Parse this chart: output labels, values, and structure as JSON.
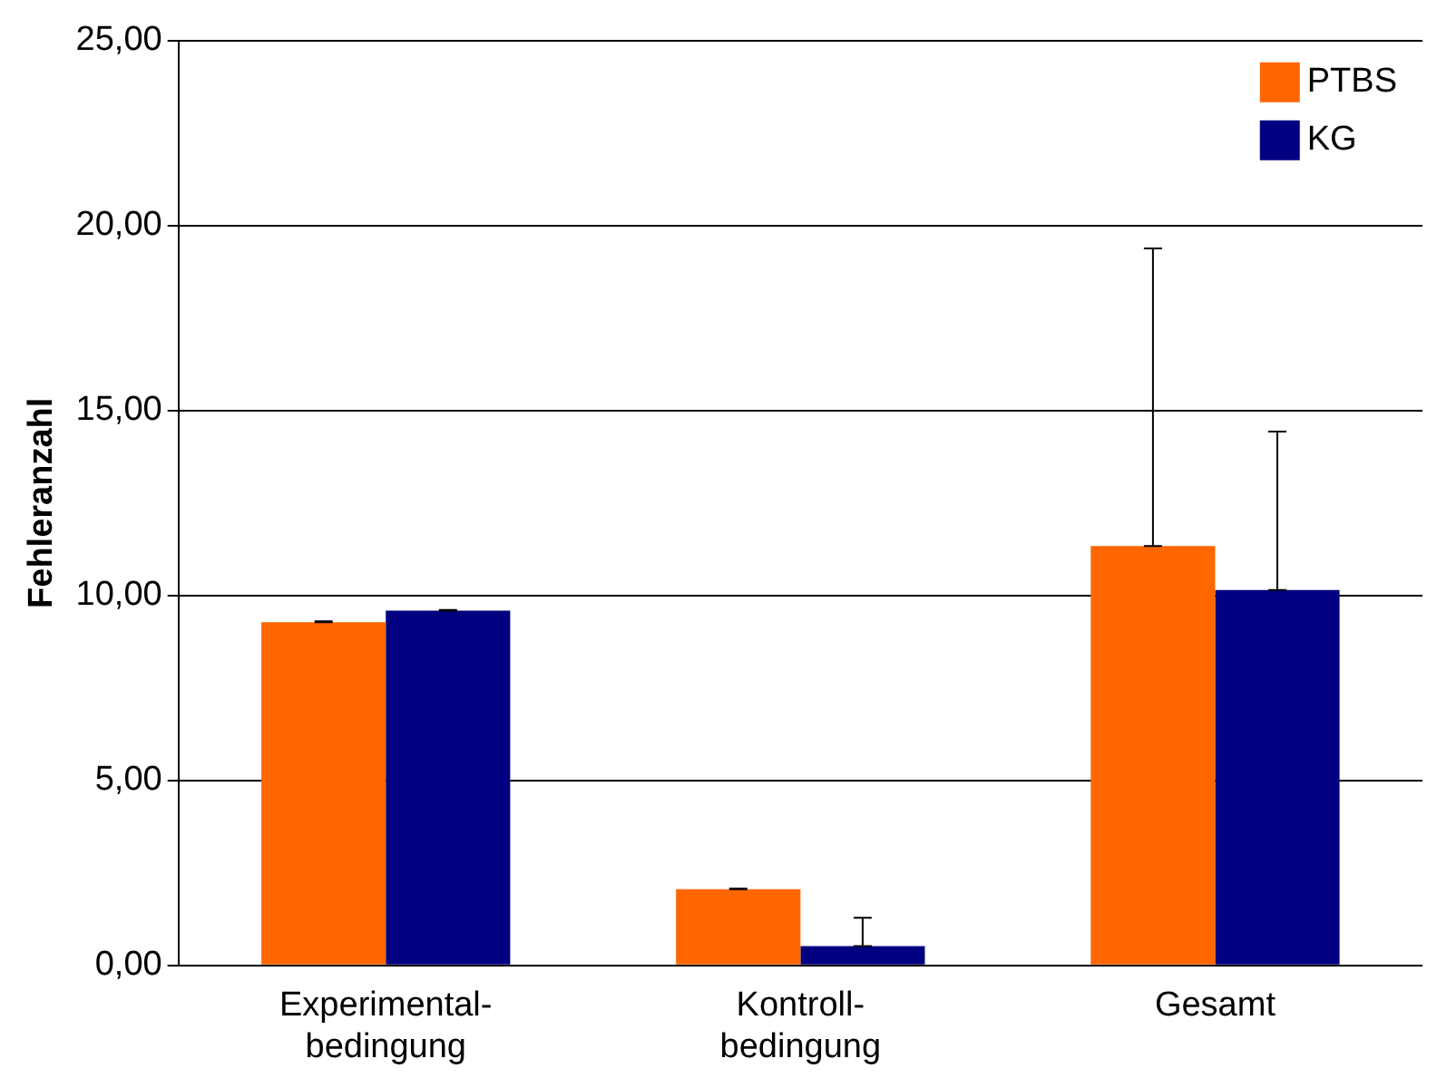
{
  "chart_data": {
    "type": "bar",
    "ylabel": "Fehleranzahl",
    "categories": [
      "Experimental-bedingung",
      "Kontroll-bedingung",
      "Gesamt"
    ],
    "series": [
      {
        "name": "PTBS",
        "color": "#ff6600",
        "values": [
          9.28,
          2.06,
          11.34
        ],
        "errors": [
          [
            9.28,
            9.3
          ],
          [
            2.06,
            2.08
          ],
          [
            11.34,
            19.38
          ]
        ]
      },
      {
        "name": "KG",
        "color": "#000080",
        "values": [
          9.59,
          0.52,
          10.15
        ],
        "errors": [
          [
            9.59,
            9.61
          ],
          [
            0.52,
            1.29
          ],
          [
            10.15,
            14.43
          ]
        ]
      }
    ],
    "ylim": [
      0,
      25
    ],
    "yticks": [
      {
        "value": 0,
        "label": "0,00"
      },
      {
        "value": 5,
        "label": "5,00"
      },
      {
        "value": 10,
        "label": "10,00"
      },
      {
        "value": 15,
        "label": "15,00"
      },
      {
        "value": 20,
        "label": "20,00"
      },
      {
        "value": 25,
        "label": "25,00"
      }
    ],
    "grid": "y",
    "legend": "top right"
  }
}
